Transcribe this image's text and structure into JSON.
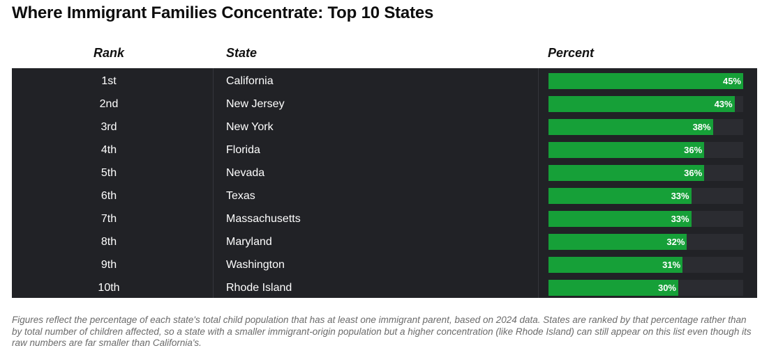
{
  "title": "Where Immigrant Families Concentrate: Top 10 States",
  "columns": {
    "rank": "Rank",
    "state": "State",
    "percent": "Percent"
  },
  "colors": {
    "bar": "#16a038",
    "table_bg": "#212226",
    "track": "#2b2c31"
  },
  "chart_data": {
    "type": "table",
    "title": "Where Immigrant Families Concentrate: Top 10 States",
    "columns": [
      "Rank",
      "State",
      "Percent"
    ],
    "rows": [
      {
        "rank": "1st",
        "state": "California",
        "value": 45,
        "label": "45%"
      },
      {
        "rank": "2nd",
        "state": "New Jersey",
        "value": 43,
        "label": "43%"
      },
      {
        "rank": "3rd",
        "state": "New York",
        "value": 38,
        "label": "38%"
      },
      {
        "rank": "4th",
        "state": "Florida",
        "value": 36,
        "label": "36%"
      },
      {
        "rank": "5th",
        "state": "Nevada",
        "value": 36,
        "label": "36%"
      },
      {
        "rank": "6th",
        "state": "Texas",
        "value": 33,
        "label": "33%"
      },
      {
        "rank": "7th",
        "state": "Massachusetts",
        "value": 33,
        "label": "33%"
      },
      {
        "rank": "8th",
        "state": "Maryland",
        "value": 32,
        "label": "32%"
      },
      {
        "rank": "9th",
        "state": "Washington",
        "value": 31,
        "label": "31%"
      },
      {
        "rank": "10th",
        "state": "Rhode Island",
        "value": 30,
        "label": "30%"
      }
    ],
    "value_max": 45
  },
  "footnote": "Figures reflect the percentage of each state's total child population that has at least one immigrant parent, based on 2024 data. States are ranked by that percentage rather than by total number of children affected, so a state with a smaller immigrant-origin population but a higher concentration (like Rhode Island) can still appear on this list even though its raw numbers are far smaller than California's."
}
